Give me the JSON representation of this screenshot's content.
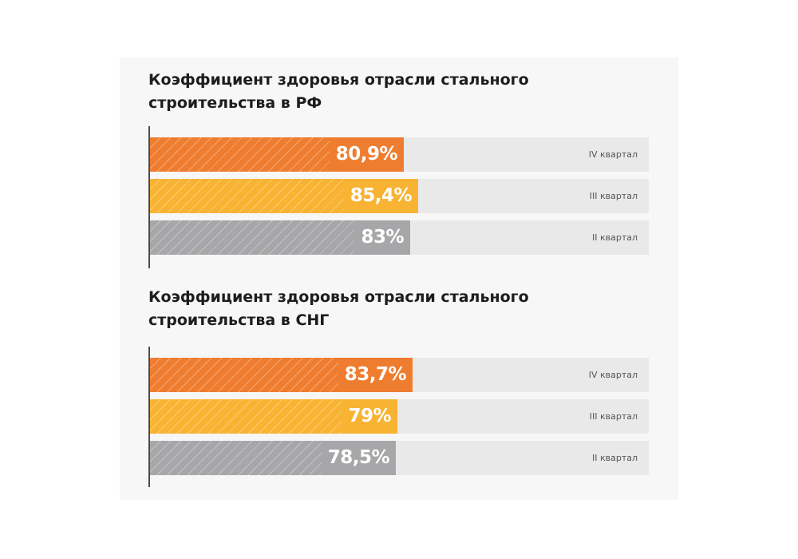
{
  "chart_data": [
    {
      "type": "bar",
      "orientation": "horizontal",
      "title": "Коэффициент здоровья отрасли стального\nстроительства в РФ",
      "categories": [
        "IV квартал",
        "III квартал",
        "II квартал"
      ],
      "values": [
        80.9,
        85.4,
        83
      ],
      "value_labels": [
        "80,9%",
        "85,4%",
        "83%"
      ],
      "colors": [
        "#ef7d2f",
        "#f8b333",
        "#a7a7a9"
      ],
      "xlim": [
        0,
        100
      ],
      "grid": false,
      "legend": "none"
    },
    {
      "type": "bar",
      "orientation": "horizontal",
      "title": "Коэффициент здоровья отрасли стального\nстроительства в СНГ",
      "categories": [
        "IV квартал",
        "III квартал",
        "II квартал"
      ],
      "values": [
        83.7,
        79,
        78.5
      ],
      "value_labels": [
        "83,7%",
        "79%",
        "78,5%"
      ],
      "colors": [
        "#ef7d2f",
        "#f8b333",
        "#a7a7a9"
      ],
      "xlim": [
        0,
        100
      ],
      "grid": false,
      "legend": "none"
    }
  ]
}
